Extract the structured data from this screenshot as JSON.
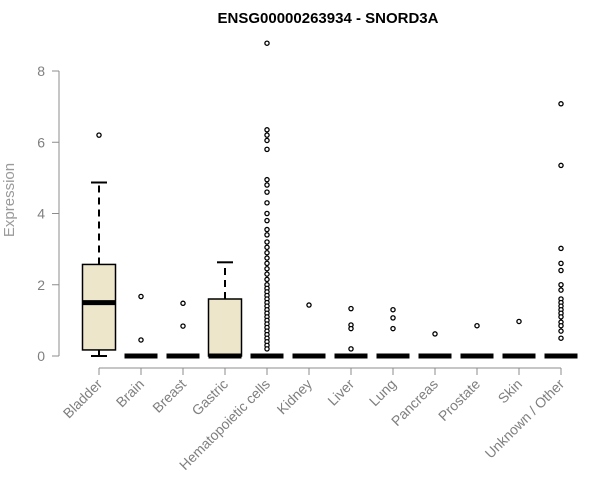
{
  "chart_data": {
    "type": "box",
    "title": "ENSG00000263934 - SNORD3A",
    "xlabel": "",
    "ylabel": "Expression",
    "ylim": [
      0,
      8.8
    ],
    "yticks": [
      0,
      2,
      4,
      6,
      8
    ],
    "grid": false,
    "box_fill": "#ede6cb",
    "categories": [
      "Bladder",
      "Brain",
      "Breast",
      "Gastric",
      "Hematopoietic cells",
      "Kidney",
      "Liver",
      "Lung",
      "Pancreas",
      "Prostate",
      "Skin",
      "Unknown / Other"
    ],
    "boxes": [
      {
        "min": 0.0,
        "q1": 0.17,
        "median": 1.5,
        "q3": 2.57,
        "max": 4.87,
        "outliers": [
          6.2
        ]
      },
      {
        "min": 0,
        "q1": 0,
        "median": 0,
        "q3": 0,
        "max": 0,
        "outliers": [
          1.67,
          0.45
        ]
      },
      {
        "min": 0,
        "q1": 0,
        "median": 0,
        "q3": 0,
        "max": 0,
        "outliers": [
          1.48,
          0.84
        ]
      },
      {
        "min": 0.0,
        "q1": 0.0,
        "median": 0.0,
        "q3": 1.6,
        "max": 2.63,
        "outliers": []
      },
      {
        "min": 0,
        "q1": 0,
        "median": 0,
        "q3": 0,
        "max": 0,
        "outliers": [
          8.78,
          6.35,
          6.2,
          6.05,
          5.8,
          4.95,
          4.8,
          4.6,
          4.3,
          4.0,
          3.8,
          3.55,
          3.4,
          3.2,
          3.05,
          2.9,
          2.75,
          2.6,
          2.45,
          2.3,
          2.15,
          2.0,
          1.9,
          1.8,
          1.7,
          1.6,
          1.5,
          1.4,
          1.3,
          1.2,
          1.1,
          1.0,
          0.9,
          0.8,
          0.7,
          0.6,
          0.5,
          0.4,
          0.3,
          0.2
        ]
      },
      {
        "min": 0,
        "q1": 0,
        "median": 0,
        "q3": 0,
        "max": 0,
        "outliers": [
          1.43
        ]
      },
      {
        "min": 0,
        "q1": 0,
        "median": 0,
        "q3": 0,
        "max": 0,
        "outliers": [
          1.33,
          0.87,
          0.77,
          0.2
        ]
      },
      {
        "min": 0,
        "q1": 0,
        "median": 0,
        "q3": 0,
        "max": 0,
        "outliers": [
          1.3,
          1.07,
          0.77
        ]
      },
      {
        "min": 0,
        "q1": 0,
        "median": 0,
        "q3": 0,
        "max": 0,
        "outliers": [
          0.62
        ]
      },
      {
        "min": 0,
        "q1": 0,
        "median": 0,
        "q3": 0,
        "max": 0,
        "outliers": [
          0.85
        ]
      },
      {
        "min": 0,
        "q1": 0,
        "median": 0,
        "q3": 0,
        "max": 0,
        "outliers": [
          0.97
        ]
      },
      {
        "min": 0,
        "q1": 0,
        "median": 0,
        "q3": 0,
        "max": 0,
        "outliers": [
          7.08,
          5.35,
          3.02,
          2.6,
          2.4,
          2.0,
          1.85,
          1.6,
          1.5,
          1.4,
          1.3,
          1.2,
          1.1,
          0.95,
          0.85,
          0.7,
          0.5
        ]
      }
    ]
  }
}
